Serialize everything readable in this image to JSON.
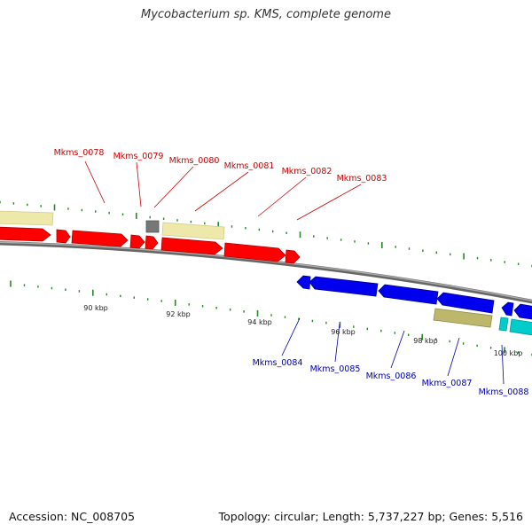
{
  "header": {
    "title": "Mycobacterium sp. KMS, complete genome"
  },
  "footer": {
    "accession": "Accession: NC_008705",
    "stats": "Topology: circular; Length: 5,737,227 bp; Genes: 5,516"
  },
  "colors": {
    "forward_cds": "#ff0000",
    "reverse_cds": "#0000ee",
    "forward_label": "#cc0000",
    "reverse_label": "#0000aa",
    "forward_other": "#eee8aa",
    "reverse_other": "#bdb76b",
    "rna": "#00cccc",
    "unknown": "#777777",
    "backbone": "#888888",
    "ticks": "#228b22"
  },
  "scale": {
    "labels": [
      "90 kbp",
      "92 kbp",
      "94 kbp",
      "96 kbp",
      "98 kbp",
      "100 kbp"
    ]
  },
  "forward_genes": [
    {
      "label": "Mkms_0078"
    },
    {
      "label": "Mkms_0079"
    },
    {
      "label": "Mkms_0080"
    },
    {
      "label": "Mkms_0081"
    },
    {
      "label": "Mkms_0082"
    },
    {
      "label": "Mkms_0083"
    }
  ],
  "reverse_genes": [
    {
      "label": "Mkms_0084"
    },
    {
      "label": "Mkms_0085"
    },
    {
      "label": "Mkms_0086"
    },
    {
      "label": "Mkms_0087"
    },
    {
      "label": "Mkms_0088"
    }
  ]
}
